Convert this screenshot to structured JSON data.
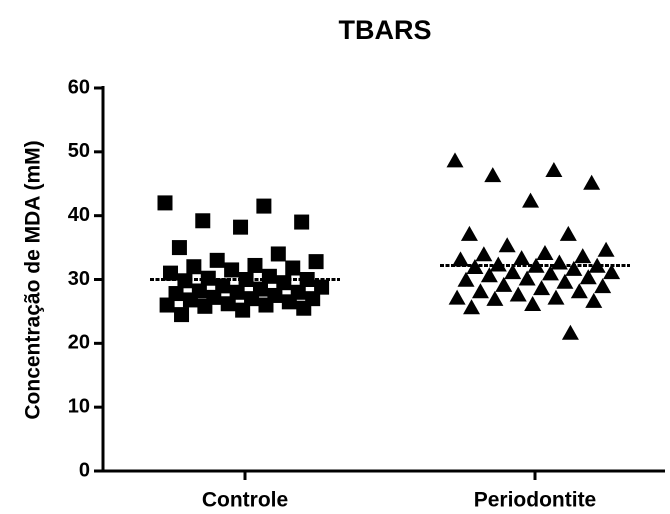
{
  "chart_data": {
    "type": "dot",
    "title": "TBARS",
    "y_label": "Concentração de MDA (mM)",
    "categories": [
      "Controle",
      "Periodontite"
    ],
    "color": "#000000",
    "groups": [
      {
        "marker": "square",
        "mean": 30,
        "values": [
          42,
          41.5,
          39.2,
          39,
          38.2,
          35,
          34,
          33,
          32.8,
          32.2,
          32,
          31.8,
          31.5,
          31,
          30.5,
          30.2,
          30,
          30,
          29.8,
          29.5,
          29,
          28.8,
          28.5,
          28.2,
          28,
          28,
          27.8,
          27.5,
          27.2,
          27,
          27,
          26.8,
          26.5,
          26.2,
          26,
          26,
          25.8,
          25.5,
          25.2,
          24.5
        ]
      },
      {
        "marker": "triangle",
        "mean": 32.2,
        "values": [
          48.5,
          47,
          46.2,
          45,
          42.2,
          37,
          37,
          35.2,
          34.5,
          34,
          33.8,
          33.5,
          33.2,
          33,
          32.5,
          32.2,
          32,
          32,
          31.8,
          31.5,
          31,
          31,
          30.8,
          30.5,
          30.2,
          30,
          29.8,
          29.5,
          29,
          28.8,
          28.5,
          28,
          28,
          27.5,
          27,
          27,
          26.8,
          26.5,
          26,
          25.5,
          21.5
        ]
      }
    ],
    "ylim": [
      0,
      60
    ],
    "yticks": [
      0,
      10,
      20,
      30,
      40,
      50,
      60
    ]
  }
}
